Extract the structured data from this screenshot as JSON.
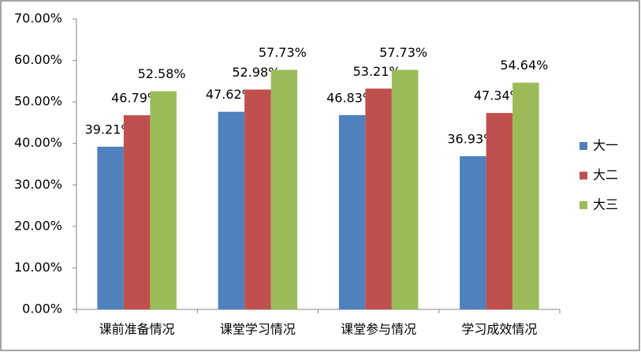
{
  "chart_data": {
    "type": "bar",
    "categories": [
      "课前准备情况",
      "课堂学习情况",
      "课堂参与情况",
      "学习成效情况"
    ],
    "series": [
      {
        "name": "大一",
        "color": "#4f81bd",
        "values": [
          39.21,
          47.62,
          46.83,
          36.93
        ],
        "value_labels": [
          "39.21%",
          "47.62%",
          "46.83%",
          "36.93%"
        ]
      },
      {
        "name": "大二",
        "color": "#c0504d",
        "values": [
          46.79,
          52.98,
          53.21,
          47.34
        ],
        "value_labels": [
          "46.79%",
          "52.98%",
          "53.21%",
          "47.34%"
        ]
      },
      {
        "name": "大三",
        "color": "#9bbb59",
        "values": [
          52.58,
          57.73,
          57.73,
          54.64
        ],
        "value_labels": [
          "52.58%",
          "57.73%",
          "57.73%",
          "54.64%"
        ]
      }
    ],
    "ylim": [
      0,
      70
    ],
    "yticks": [
      {
        "value": 0,
        "label": "0.00%"
      },
      {
        "value": 10,
        "label": "10.00%"
      },
      {
        "value": 20,
        "label": "20.00%"
      },
      {
        "value": 30,
        "label": "30.00%"
      },
      {
        "value": 40,
        "label": "40.00%"
      },
      {
        "value": 50,
        "label": "50.00%"
      },
      {
        "value": 60,
        "label": "60.00%"
      },
      {
        "value": 70,
        "label": "70.00%"
      }
    ],
    "legend": "right"
  }
}
